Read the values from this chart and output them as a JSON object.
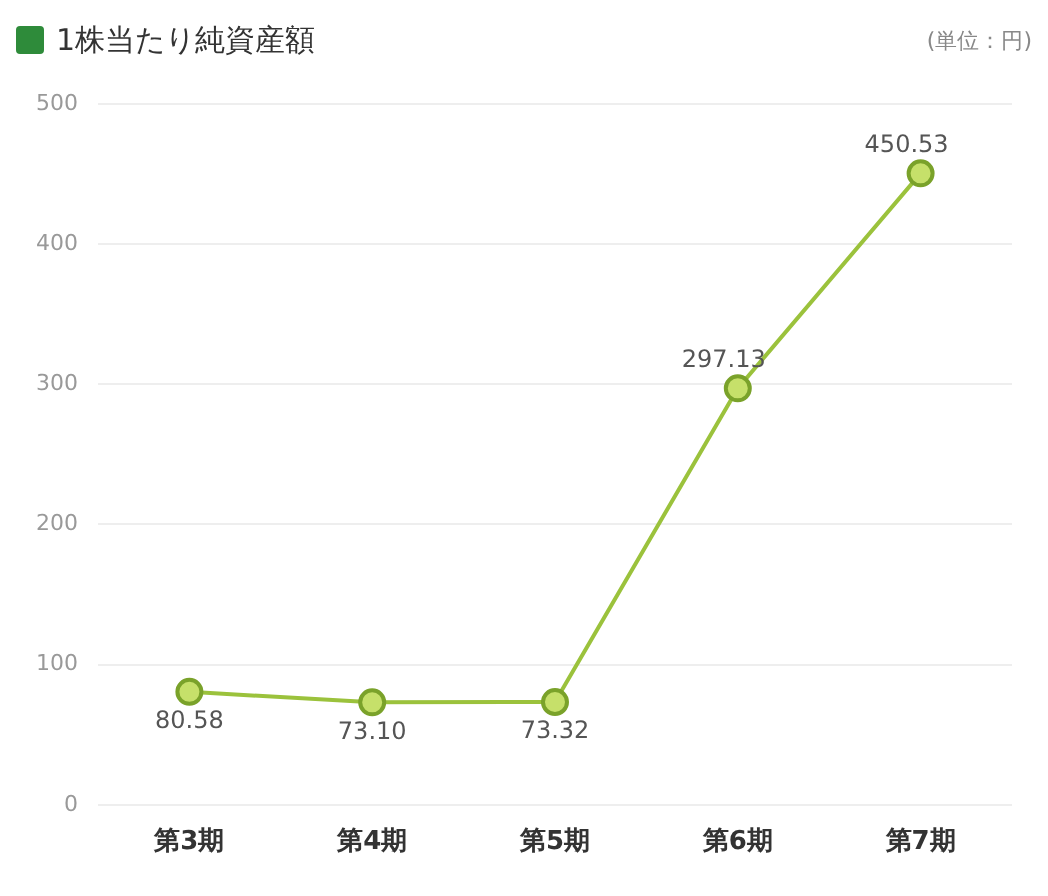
{
  "chart_data": {
    "type": "line",
    "title": "1株当たり純資産額",
    "annotations": [
      "(単位：円)"
    ],
    "categories": [
      "第3期",
      "第4期",
      "第5期",
      "第6期",
      "第7期"
    ],
    "series": [
      {
        "color": "#9bc23c",
        "values": [
          80.58,
          73.1,
          73.32,
          297.13,
          450.53
        ],
        "value_labels": [
          "80.58",
          "73.10",
          "73.32",
          "297.13",
          "450.53"
        ]
      }
    ],
    "ylim": [
      0,
      500
    ],
    "yticks": [
      0,
      100,
      200,
      300,
      400,
      500
    ],
    "grid": "y",
    "marker": "circle",
    "legend": false
  }
}
